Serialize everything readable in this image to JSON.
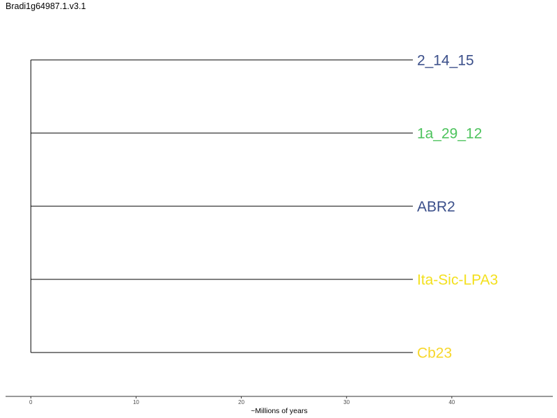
{
  "title": "Bradi1g64987.1.v3.1",
  "tree": {
    "root_age": 0,
    "tip_age": 36.3,
    "tips": [
      {
        "name": "2_14_15",
        "color": "#3b4f8a"
      },
      {
        "name": "1a_29_12",
        "color": "#4cc35c"
      },
      {
        "name": "ABR2",
        "color": "#3b4f8a"
      },
      {
        "name": "Ita-Sic-LPA3",
        "color": "#f3e01e"
      },
      {
        "name": "Cb23",
        "color": "#f7d72a"
      }
    ]
  },
  "axis": {
    "title": "~Millions of years",
    "range": [
      -2.4,
      49.6
    ],
    "ticks": [
      0,
      10,
      20,
      30,
      40
    ],
    "tick_labels": [
      "0",
      "10",
      "20",
      "30",
      "40"
    ]
  }
}
